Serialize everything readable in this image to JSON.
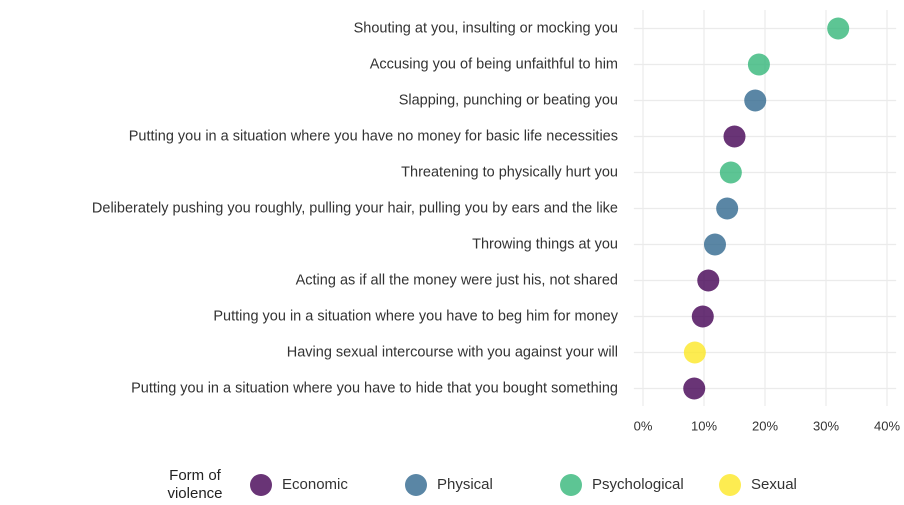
{
  "chart_data": {
    "type": "dot",
    "categories": [
      "Shouting at you, insulting or mocking you",
      "Accusing you of being unfaithful to him",
      "Slapping, punching or beating you",
      "Putting you in a situation where you have no money for basic life necessities",
      "Threatening to physically hurt you",
      "Deliberately pushing you roughly, pulling your hair, pulling you by ears and the like",
      "Throwing things at you",
      "Acting as if all the money were just his, not shared",
      "Putting you in a situation where you have to beg him for money",
      "Having sexual intercourse with you against your will",
      "Putting you in a situation where you have to hide that you bought something"
    ],
    "series": [
      {
        "name": "Economic",
        "color": "#440154",
        "values": [
          null,
          null,
          null,
          15,
          null,
          null,
          null,
          10.7,
          9.8,
          null,
          8.4
        ]
      },
      {
        "name": "Physical",
        "color": "#31688e",
        "values": [
          null,
          null,
          18.4,
          null,
          null,
          13.8,
          11.8,
          null,
          null,
          null,
          null
        ]
      },
      {
        "name": "Psychological",
        "color": "#35b779",
        "values": [
          32,
          19,
          null,
          null,
          14.4,
          null,
          null,
          null,
          null,
          null,
          null
        ]
      },
      {
        "name": "Sexual",
        "color": "#fde725",
        "values": [
          null,
          null,
          null,
          null,
          null,
          null,
          null,
          null,
          null,
          8.5,
          null
        ]
      }
    ],
    "legend_title": "Form of violence",
    "xlim": [
      -1.5,
      41.5
    ],
    "xticks": [
      {
        "value": 0,
        "label": "0%"
      },
      {
        "value": 10,
        "label": "10%"
      },
      {
        "value": 20,
        "label": "20%"
      },
      {
        "value": 30,
        "label": "30%"
      },
      {
        "value": 40,
        "label": "40%"
      }
    ],
    "grid": true
  }
}
